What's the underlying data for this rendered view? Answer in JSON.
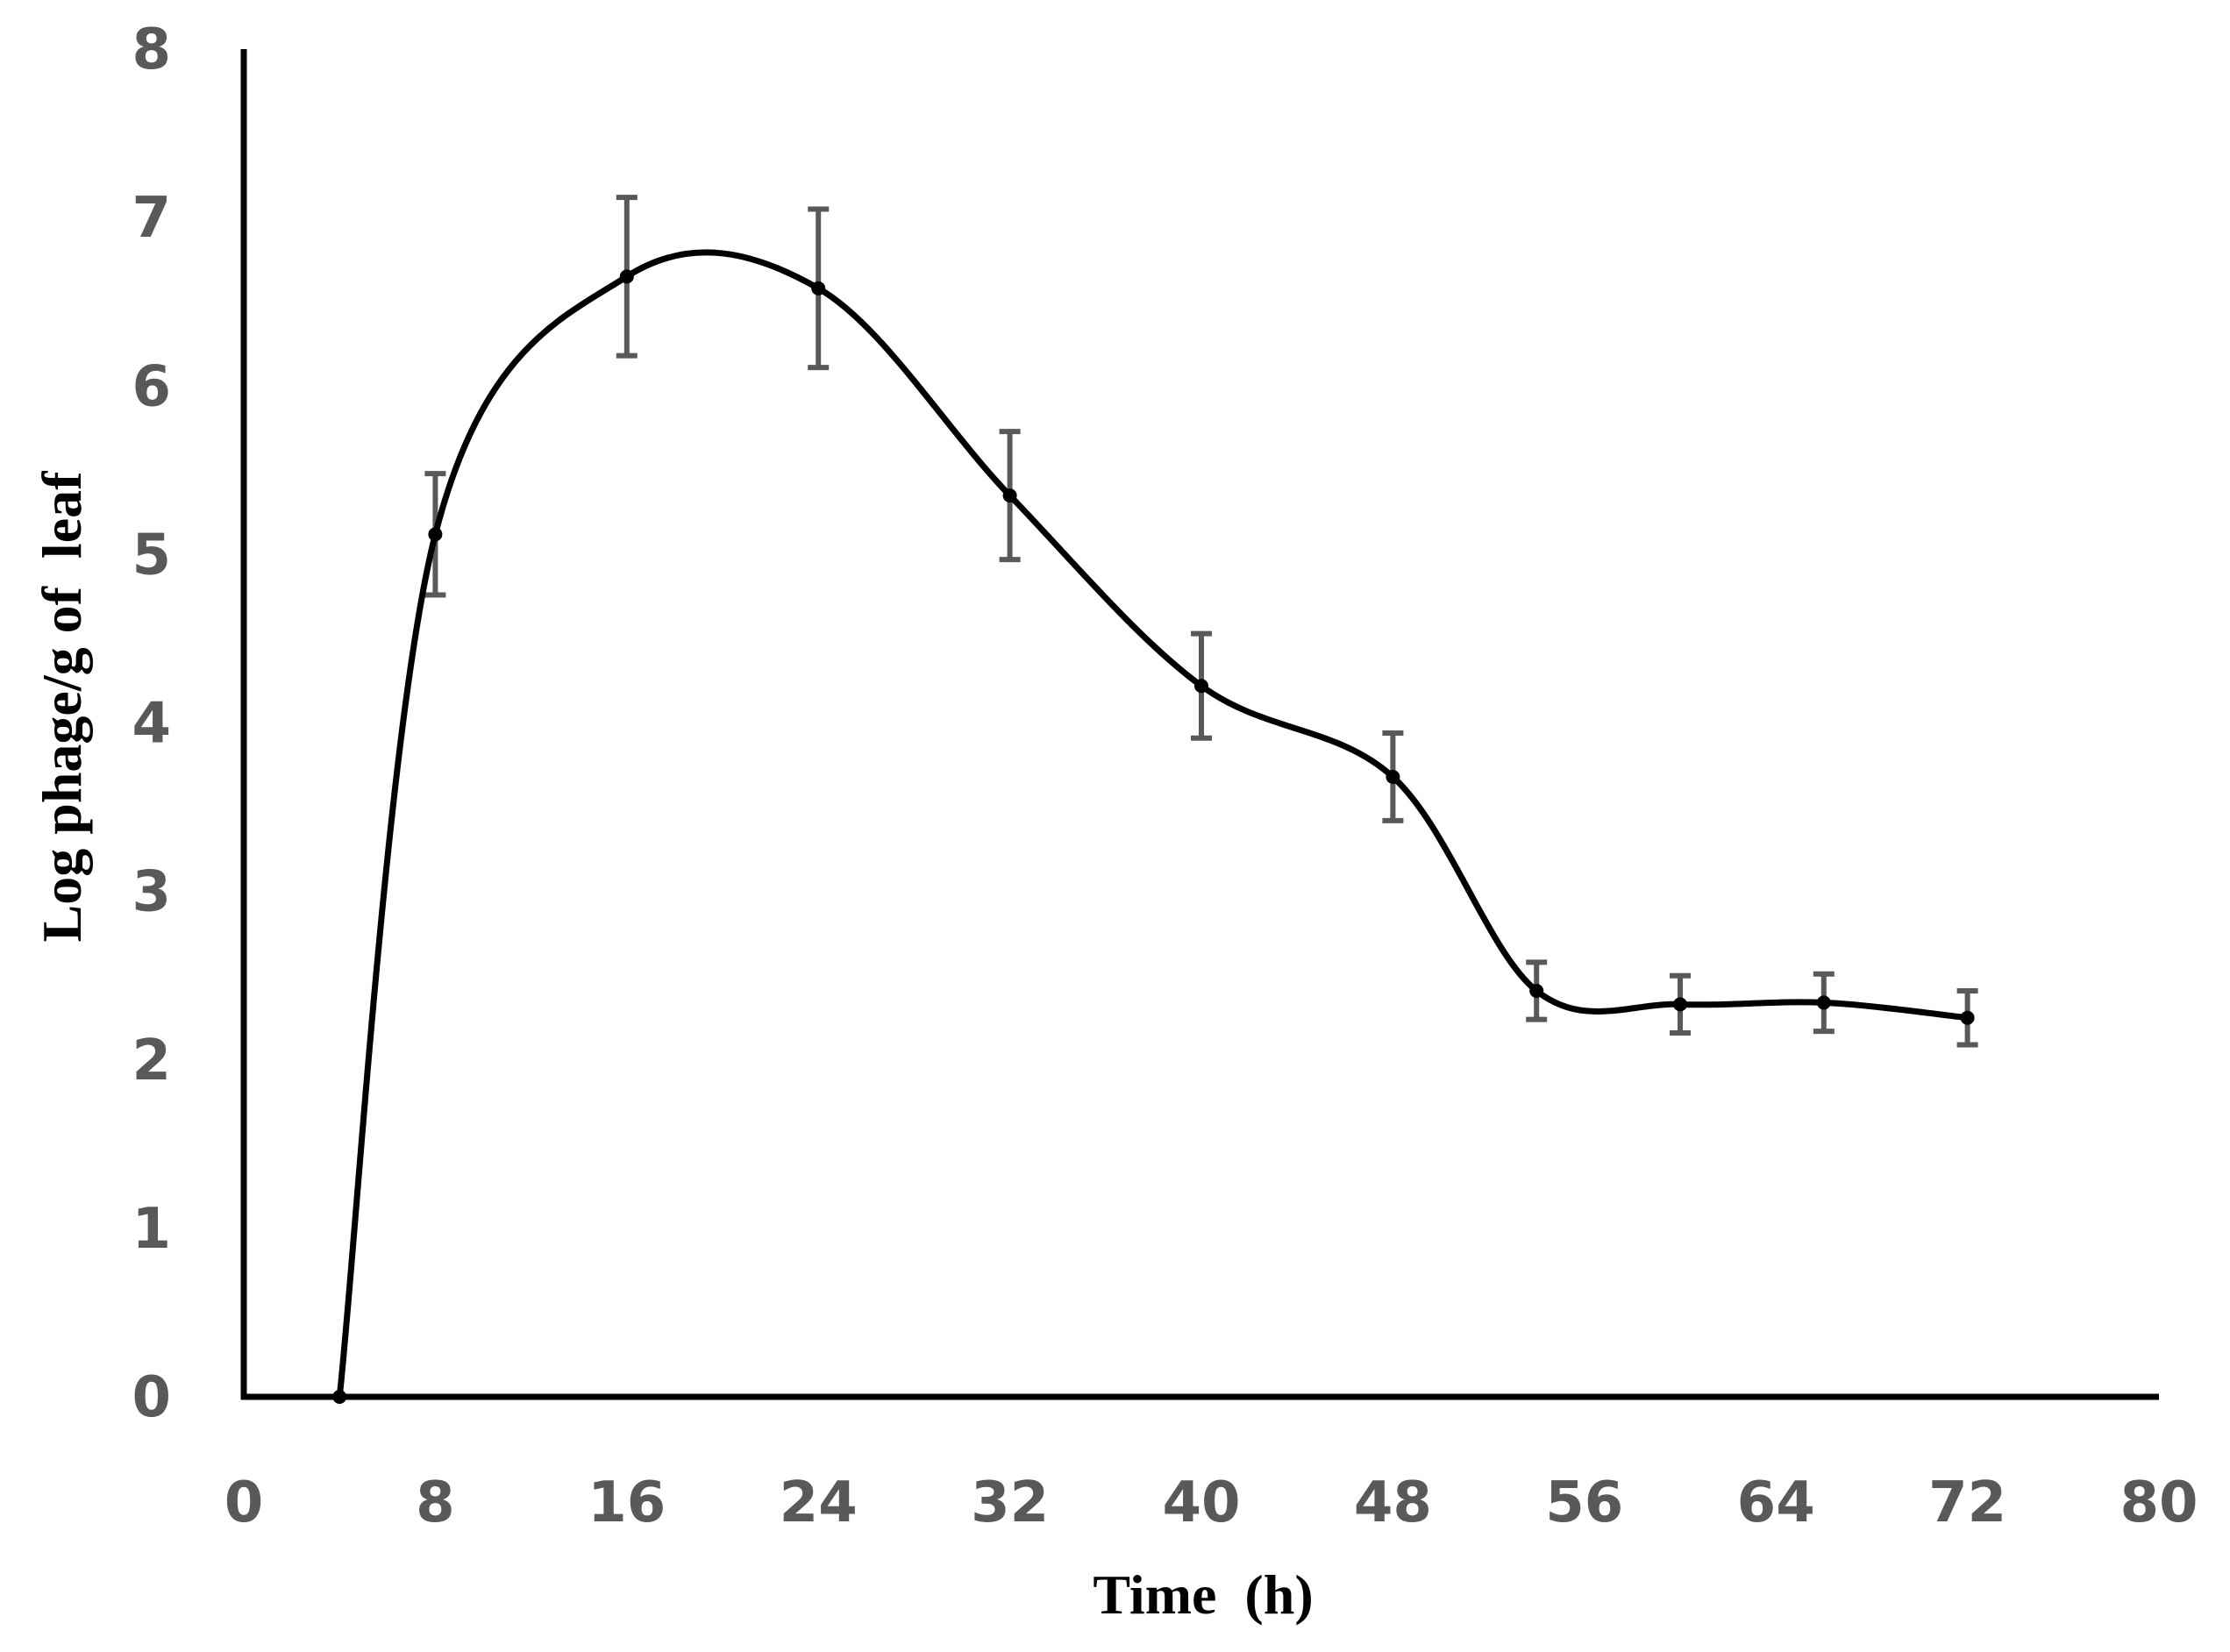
{
  "chart_data": {
    "type": "line",
    "title": "",
    "xlabel": "Time  (h)",
    "ylabel": "Log phage/g of  leaf",
    "xlim": [
      0,
      80
    ],
    "ylim": [
      0,
      8
    ],
    "x_ticks": [
      0,
      8,
      16,
      24,
      32,
      40,
      48,
      56,
      64,
      72,
      80
    ],
    "y_ticks": [
      0,
      1,
      2,
      3,
      4,
      5,
      6,
      7,
      8
    ],
    "x_tick_labels": [
      "0",
      "8",
      "16",
      "24",
      "32",
      "40",
      "48",
      "56",
      "64",
      "72",
      "80"
    ],
    "y_tick_labels": [
      "0",
      "1",
      "2",
      "3",
      "4",
      "5",
      "6",
      "7",
      "8"
    ],
    "grid": false,
    "legend": "none",
    "series": [
      {
        "name": "phage",
        "smooth": true,
        "x": [
          4,
          8,
          16,
          24,
          32,
          40,
          48,
          54,
          60,
          66,
          72
        ],
        "y": [
          0,
          5.12,
          6.65,
          6.58,
          5.35,
          4.22,
          3.68,
          2.41,
          2.33,
          2.34,
          2.25
        ],
        "error": [
          0,
          0.36,
          0.47,
          0.47,
          0.38,
          0.31,
          0.26,
          0.17,
          0.17,
          0.17,
          0.16
        ]
      }
    ],
    "colors": {
      "line": "#000000",
      "marker": "#000000",
      "error_bar": "#595959",
      "axis": "#000000",
      "tick_label": "#595959"
    }
  }
}
